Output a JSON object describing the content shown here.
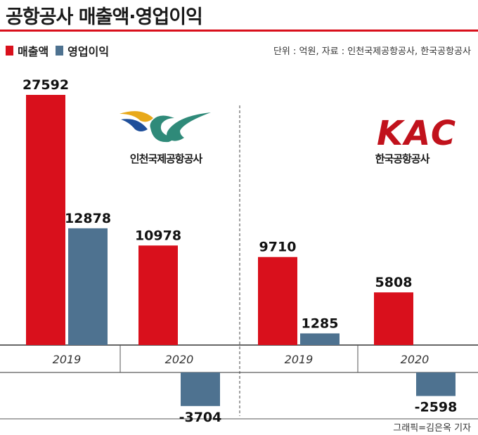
{
  "title": "공항공사 매출액·영업이익",
  "legend": [
    {
      "label": "매출액",
      "color": "#d9101c"
    },
    {
      "label": "영업이익",
      "color": "#4e7290"
    }
  ],
  "source": "단위 : 억원, 자료 : 인천국제공항공사, 한국공항공사",
  "credit": "그래픽=김은옥 기자",
  "logos": {
    "iiac": {
      "label": "인천국제공항공사"
    },
    "kac": {
      "mark": "KAC",
      "label": "한국공항공사"
    }
  },
  "chart_data": {
    "type": "bar",
    "unit": "억원",
    "series_names": [
      "매출액",
      "영업이익"
    ],
    "colors": {
      "revenue": "#d9101c",
      "operating_profit": "#4e7290"
    },
    "ylim": [
      -3704,
      27592
    ],
    "groups": [
      {
        "company": "인천국제공항공사",
        "years": [
          {
            "year": "2019",
            "revenue": 27592,
            "operating_profit": 12878
          },
          {
            "year": "2020",
            "revenue": 10978,
            "operating_profit": -3704
          }
        ]
      },
      {
        "company": "한국공항공사",
        "years": [
          {
            "year": "2019",
            "revenue": 9710,
            "operating_profit": 1285
          },
          {
            "year": "2020",
            "revenue": 5808,
            "operating_profit": -2598
          }
        ]
      }
    ]
  }
}
